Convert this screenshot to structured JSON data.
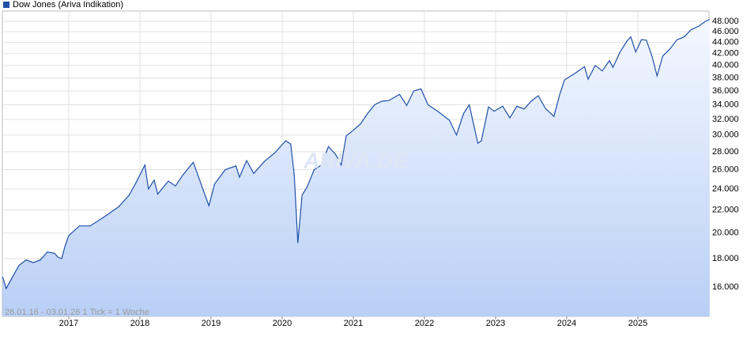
{
  "chart_data": {
    "type": "line",
    "log_scale": true,
    "grid": true,
    "legend": "top-left",
    "note": "26.01.16 - 03.01.26   1 Tick = 1 Woche",
    "watermark": "ARIVA.DE",
    "x": [
      2016.07,
      2016.12,
      2016.2,
      2016.3,
      2016.4,
      2016.5,
      2016.6,
      2016.7,
      2016.8,
      2016.85,
      2016.9,
      2016.95,
      2017.0,
      2017.15,
      2017.3,
      2017.5,
      2017.7,
      2017.85,
      2017.95,
      2018.07,
      2018.12,
      2018.2,
      2018.25,
      2018.4,
      2018.5,
      2018.6,
      2018.75,
      2018.85,
      2018.97,
      2019.05,
      2019.2,
      2019.35,
      2019.4,
      2019.5,
      2019.6,
      2019.75,
      2019.9,
      2020.05,
      2020.12,
      2020.17,
      2020.22,
      2020.28,
      2020.35,
      2020.45,
      2020.55,
      2020.65,
      2020.75,
      2020.83,
      2020.9,
      2021.0,
      2021.1,
      2021.2,
      2021.3,
      2021.4,
      2021.5,
      2021.65,
      2021.75,
      2021.85,
      2021.95,
      2022.05,
      2022.2,
      2022.35,
      2022.45,
      2022.55,
      2022.63,
      2022.75,
      2022.8,
      2022.9,
      2022.98,
      2023.1,
      2023.2,
      2023.3,
      2023.4,
      2023.5,
      2023.6,
      2023.7,
      2023.82,
      2023.9,
      2023.97,
      2024.1,
      2024.25,
      2024.3,
      2024.4,
      2024.5,
      2024.6,
      2024.65,
      2024.75,
      2024.85,
      2024.9,
      2024.97,
      2025.05,
      2025.12,
      2025.2,
      2025.27,
      2025.35,
      2025.45,
      2025.55,
      2025.65,
      2025.75,
      2025.85,
      2025.95,
      2026.01
    ],
    "series": [
      {
        "name": "Dow Jones (Ariva Indikation)",
        "color": "#1f4fa8",
        "values": [
          16700,
          15900,
          16600,
          17500,
          17900,
          17700,
          17900,
          18500,
          18400,
          18100,
          18000,
          19000,
          19800,
          20600,
          20600,
          21400,
          22300,
          23400,
          24700,
          26500,
          24000,
          24900,
          23500,
          24800,
          24300,
          25400,
          26800,
          24700,
          22400,
          24500,
          26000,
          26400,
          25200,
          27000,
          25600,
          26900,
          27900,
          29300,
          28900,
          25400,
          19200,
          23400,
          24200,
          26000,
          26500,
          28600,
          27700,
          26500,
          29900,
          30600,
          31400,
          32800,
          34000,
          34500,
          34600,
          35500,
          33900,
          36000,
          36300,
          34000,
          33000,
          31900,
          30000,
          32800,
          34000,
          29000,
          29300,
          33700,
          33100,
          33800,
          32200,
          33800,
          33400,
          34500,
          35300,
          33500,
          32400,
          35400,
          37700,
          38600,
          39800,
          37800,
          40000,
          39100,
          40800,
          39700,
          42300,
          44300,
          45000,
          42300,
          44500,
          44400,
          41500,
          38300,
          41600,
          42800,
          44500,
          45000,
          46400,
          47000,
          48000,
          48400
        ]
      }
    ],
    "xlim": [
      2016.067,
      2026.0
    ],
    "xticks": [
      2017,
      2018,
      2019,
      2020,
      2021,
      2022,
      2023,
      2024,
      2025
    ],
    "ylim": [
      14177,
      50084
    ],
    "yticks": [
      {
        "value": 16000,
        "label": "16.000"
      },
      {
        "value": 18000,
        "label": "18.000"
      },
      {
        "value": 20000,
        "label": "20.000"
      },
      {
        "value": 22000,
        "label": "22.000"
      },
      {
        "value": 24000,
        "label": "24.000"
      },
      {
        "value": 26000,
        "label": "26.000"
      },
      {
        "value": 28000,
        "label": "28.000"
      },
      {
        "value": 30000,
        "label": "30.000"
      },
      {
        "value": 32000,
        "label": "32.000"
      },
      {
        "value": 34000,
        "label": "34.000"
      },
      {
        "value": 36000,
        "label": "36.000"
      },
      {
        "value": 38000,
        "label": "38.000"
      },
      {
        "value": 40000,
        "label": "40.000"
      },
      {
        "value": 42000,
        "label": "42.000"
      },
      {
        "value": 44000,
        "label": "44.000"
      },
      {
        "value": 46000,
        "label": "46.000"
      },
      {
        "value": 48000,
        "label": "48.000"
      }
    ]
  }
}
